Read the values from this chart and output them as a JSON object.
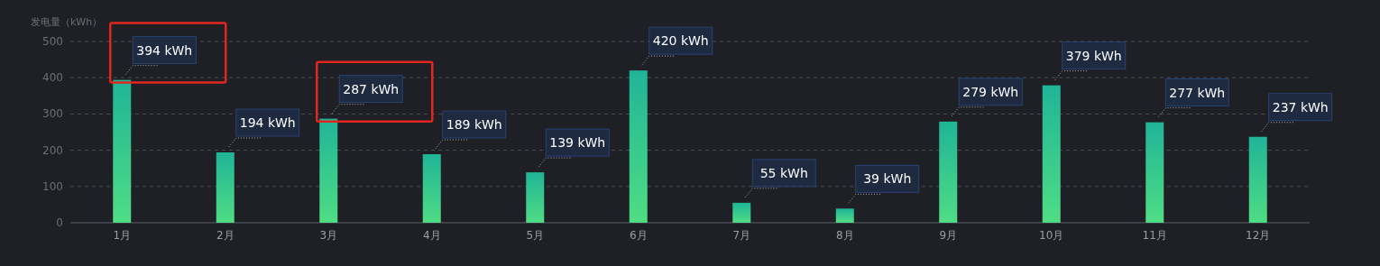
{
  "chart_data": {
    "type": "bar",
    "ylabel": "发电量（kWh）",
    "categories": [
      "1月",
      "2月",
      "3月",
      "4月",
      "5月",
      "6月",
      "7月",
      "8月",
      "9月",
      "10月",
      "11月",
      "12月"
    ],
    "series": [
      {
        "color": "#2cc492",
        "values": [
          394,
          194,
          287,
          189,
          139,
          420,
          55,
          39,
          279,
          379,
          277,
          237
        ],
        "value_labels": [
          "394 kWh",
          "194 kWh",
          "287 kWh",
          "189 kWh",
          "139 kWh",
          "420 kWh",
          "55 kWh",
          "39 kWh",
          "279 kWh",
          "379 kWh",
          "277 kWh",
          "237 kWh"
        ]
      }
    ],
    "ylim": [
      0,
      500
    ],
    "yticks": [
      0,
      100,
      200,
      300,
      400,
      500
    ],
    "grid": "y"
  }
}
